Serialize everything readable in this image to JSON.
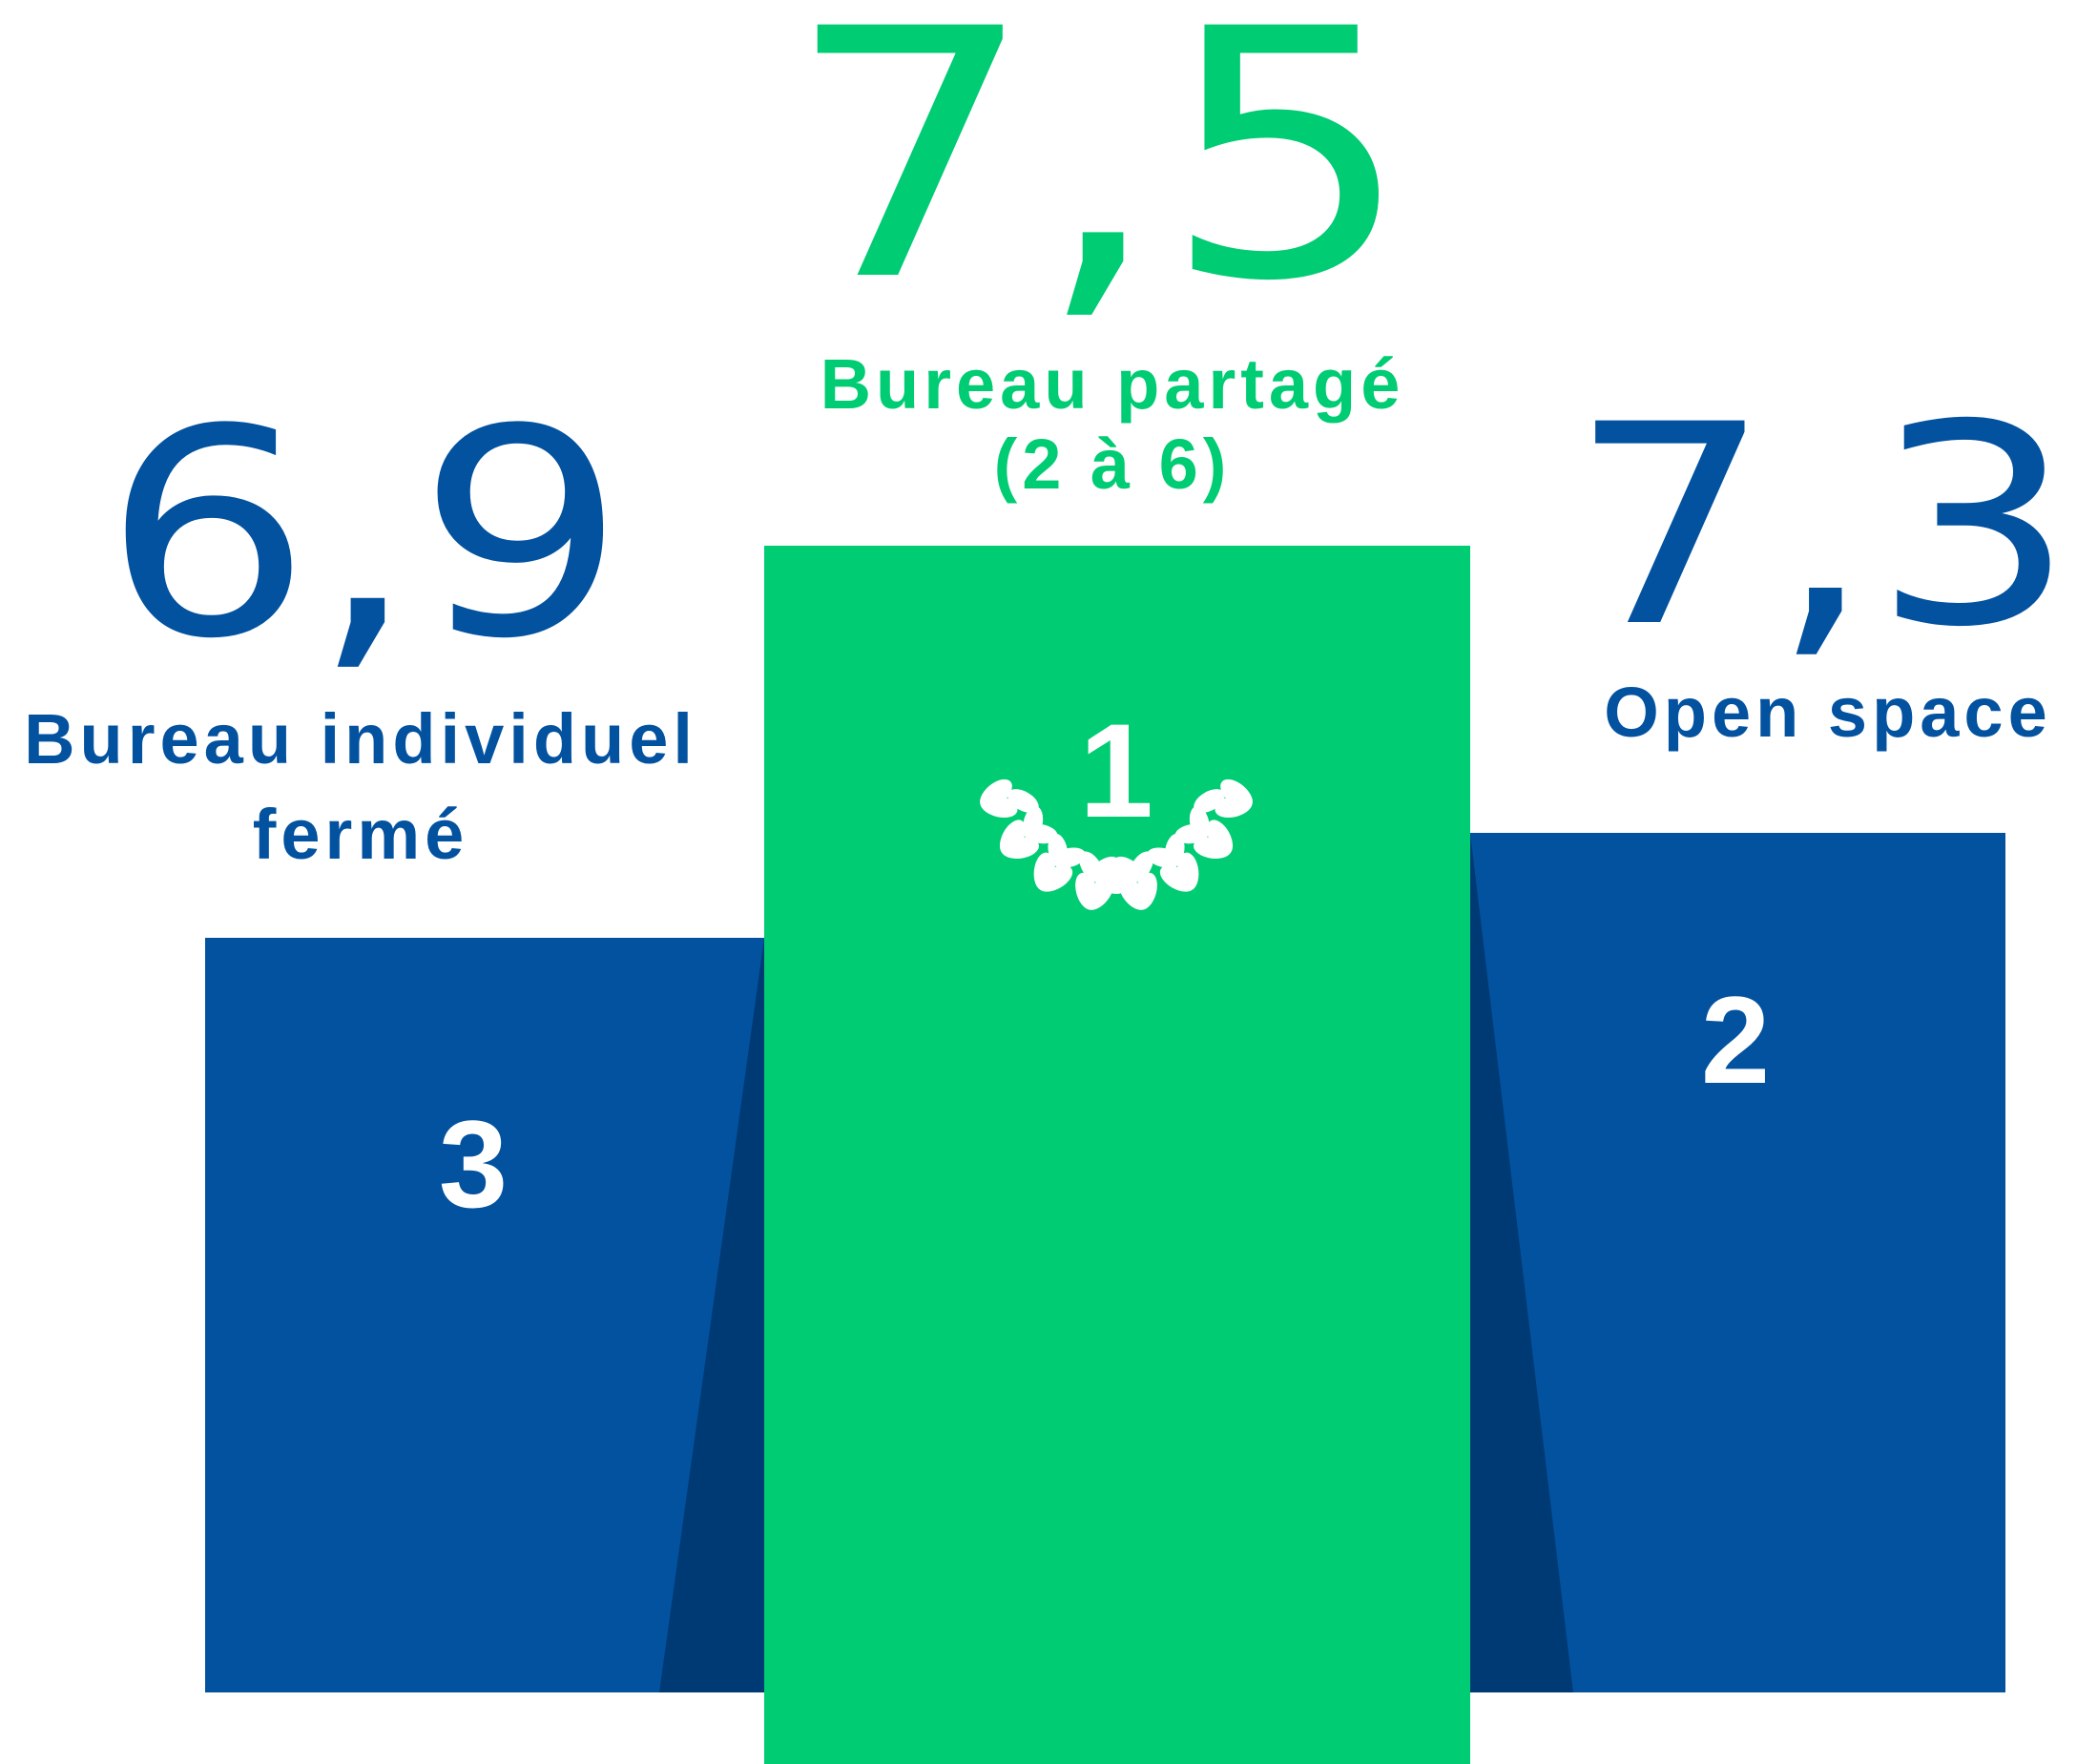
{
  "podium": [
    {
      "rank": "3",
      "score": "6,9",
      "label_lines": [
        "Bureau individuel",
        "fermé"
      ]
    },
    {
      "rank": "1",
      "score": "7,5",
      "label_lines": [
        "Bureau partagé",
        "(2 à 6)"
      ]
    },
    {
      "rank": "2",
      "score": "7,3",
      "label_lines": [
        "Open space"
      ]
    }
  ]
}
